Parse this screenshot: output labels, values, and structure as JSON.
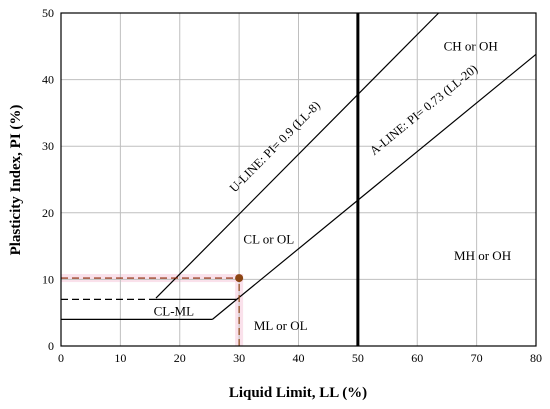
{
  "chart_data": {
    "type": "line",
    "title": "",
    "xlabel": "Liquid Limit, LL (%)",
    "ylabel": "Plasticity Index, PI (%)",
    "xlim": [
      0,
      80
    ],
    "ylim": [
      0,
      50
    ],
    "xticks": [
      0,
      10,
      20,
      30,
      40,
      50,
      60,
      70,
      80
    ],
    "yticks": [
      0,
      10,
      20,
      30,
      40,
      50
    ],
    "grid": true,
    "series": [
      {
        "name": "U-LINE: PI= 0.9 (LL-8)",
        "points": [
          [
            16,
            7.2
          ],
          [
            63.6,
            50
          ]
        ],
        "style": "solid",
        "color": "#000000"
      },
      {
        "name": "A-LINE: PI= 0.73 (LL-20)",
        "points": [
          [
            29.6,
            7
          ],
          [
            80,
            43.8
          ]
        ],
        "style": "solid",
        "color": "#000000"
      },
      {
        "name": "",
        "points": [
          [
            50,
            0
          ],
          [
            50,
            50
          ]
        ],
        "style": "bold",
        "color": "#000000"
      },
      {
        "name": "",
        "points": [
          [
            16,
            7
          ],
          [
            29.6,
            7
          ]
        ],
        "style": "solid",
        "color": "#000000"
      },
      {
        "name": "",
        "points": [
          [
            0,
            4
          ],
          [
            25.5,
            4
          ]
        ],
        "style": "solid",
        "color": "#000000"
      },
      {
        "name": "",
        "points": [
          [
            25.5,
            4
          ],
          [
            29.6,
            7
          ]
        ],
        "style": "solid",
        "color": "#000000"
      },
      {
        "name": "",
        "points": [
          [
            0,
            7
          ],
          [
            16,
            7
          ]
        ],
        "style": "dashed",
        "color": "#000000"
      },
      {
        "name": "",
        "points": [
          [
            0,
            10.2
          ],
          [
            30,
            10.2
          ]
        ],
        "style": "dashed",
        "color": "#8B2500"
      },
      {
        "name": "",
        "points": [
          [
            30,
            0
          ],
          [
            30,
            10.2
          ]
        ],
        "style": "dashed",
        "color": "#8B4513"
      }
    ],
    "highlight_point": {
      "x": 30,
      "y": 10.2,
      "color": "#8B4513"
    },
    "highlight_band": {
      "color": "#f9d9e6"
    },
    "zones": [
      {
        "text": "CH or OH",
        "x": 69,
        "y": 45
      },
      {
        "text": "CL or OL",
        "x": 35,
        "y": 16
      },
      {
        "text": "MH or OH",
        "x": 71,
        "y": 13.5
      },
      {
        "text": "CL-ML",
        "x": 19,
        "y": 5.2
      },
      {
        "text": "ML or OL",
        "x": 37,
        "y": 3
      }
    ],
    "line_labels": [
      {
        "text": "U-LINE: PI= 0.9 (LL-8)",
        "x": 36.5,
        "y": 29.5
      },
      {
        "text": "A-LINE: PI= 0.73 (LL-20)",
        "x": 61.5,
        "y": 35
      }
    ]
  }
}
